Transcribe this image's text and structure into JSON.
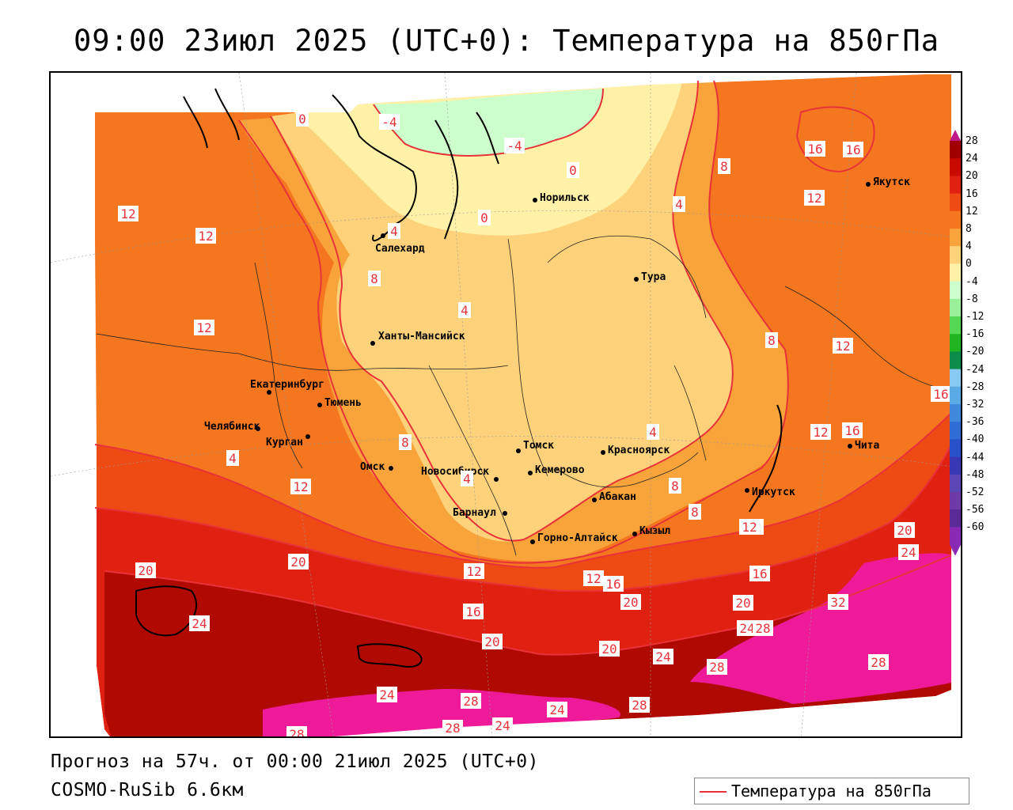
{
  "title": "09:00 23июл 2025 (UTC+0): Температура на 850гПа",
  "footer": {
    "forecast": "Прогноз на 57ч. от 00:00 21июл 2025 (UTC+0)",
    "model": "COSMO-RuSib 6.6км"
  },
  "legend": {
    "label": "Температура на 850гПа",
    "line_color": "#e8323a"
  },
  "colorbar": {
    "ticks": [
      "28",
      "24",
      "20",
      "16",
      "12",
      "8",
      "4",
      "0",
      "-4",
      "-8",
      "-12",
      "-16",
      "-20",
      "-24",
      "-28",
      "-32",
      "-36",
      "-40",
      "-44",
      "-48",
      "-52",
      "-56",
      "-60"
    ],
    "colors": [
      "#a00000",
      "#c80a00",
      "#e02010",
      "#ee4a14",
      "#f4761e",
      "#f9a43a",
      "#fdd27a",
      "#fff2a8",
      "#ccffcc",
      "#99f099",
      "#55d955",
      "#22b522",
      "#0c8c4a",
      "#87c9f0",
      "#5aaae6",
      "#3f88dc",
      "#2f6cd4",
      "#2850c8",
      "#3838b4",
      "#5a46b4",
      "#6e3aa8",
      "#5a2a96",
      "#8a2ab4"
    ]
  },
  "cities": [
    {
      "name": "Норильск"
    },
    {
      "name": "Салехард"
    },
    {
      "name": "Тура"
    },
    {
      "name": "Якутск"
    },
    {
      "name": "Ханты-Мансийск"
    },
    {
      "name": "Екатеринбург"
    },
    {
      "name": "Тюмень"
    },
    {
      "name": "Челябинск"
    },
    {
      "name": "Курган"
    },
    {
      "name": "Омск"
    },
    {
      "name": "Новосибирск"
    },
    {
      "name": "Томск"
    },
    {
      "name": "Кемерово"
    },
    {
      "name": "Барнаул"
    },
    {
      "name": "Горно-Алтайск"
    },
    {
      "name": "Красноярск"
    },
    {
      "name": "Абакан"
    },
    {
      "name": "Кызыл"
    },
    {
      "name": "Иркутск"
    },
    {
      "name": "Чита"
    }
  ],
  "isotherm_labels": [
    "0",
    "-4",
    "-4",
    "0",
    "0",
    "4",
    "8",
    "4",
    "12",
    "12",
    "12",
    "8",
    "4",
    "8",
    "12",
    "16",
    "16",
    "12",
    "16",
    "16",
    "12",
    "8",
    "8",
    "12",
    "4",
    "8",
    "12",
    "4",
    "20",
    "20",
    "24",
    "12",
    "16",
    "20",
    "12",
    "16",
    "20",
    "16",
    "20",
    "24",
    "28",
    "32",
    "28",
    "24",
    "24",
    "28",
    "28",
    "20",
    "24",
    "24",
    "28",
    "28",
    "24",
    "28",
    "20",
    "4",
    "12"
  ]
}
